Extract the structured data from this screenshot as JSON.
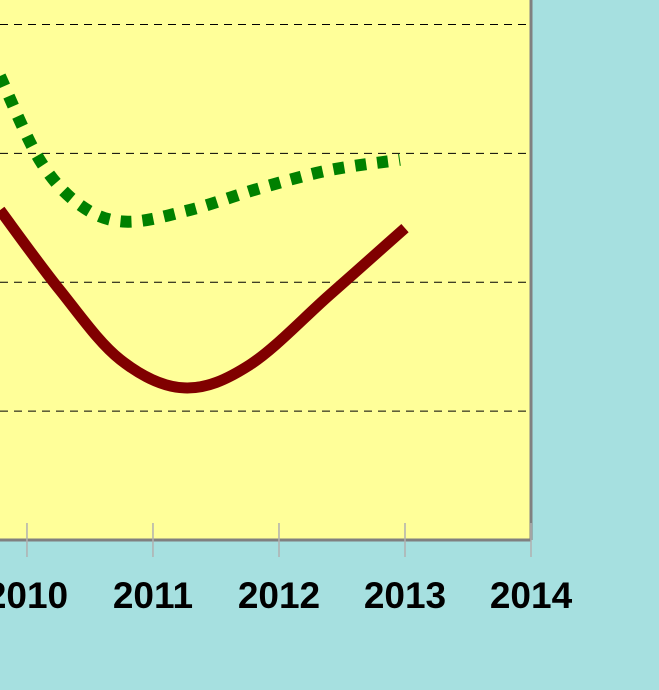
{
  "chart_data": {
    "type": "line",
    "xlim": [
      2009.786,
      2014
    ],
    "xticks": [
      2010,
      2011,
      2012,
      2013,
      2014
    ],
    "ylim": [
      0,
      4.19
    ],
    "ygrid": [
      1,
      2,
      3,
      4
    ],
    "series": [
      {
        "color": "#800000",
        "style": "solid",
        "x": [
          2009.786,
          2010.26,
          2010.74,
          2011.25,
          2011.77,
          2012.4,
          2013.0
        ],
        "values": [
          2.56,
          1.94,
          1.4,
          1.18,
          1.36,
          1.9,
          2.42
        ]
      },
      {
        "color": "#008000",
        "style": "dotted",
        "x": [
          2009.786,
          2010.1,
          2010.42,
          2010.78,
          2011.29,
          2011.85,
          2012.4,
          2012.96
        ],
        "values": [
          3.6,
          2.95,
          2.6,
          2.47,
          2.56,
          2.73,
          2.87,
          2.95
        ]
      }
    ]
  }
}
